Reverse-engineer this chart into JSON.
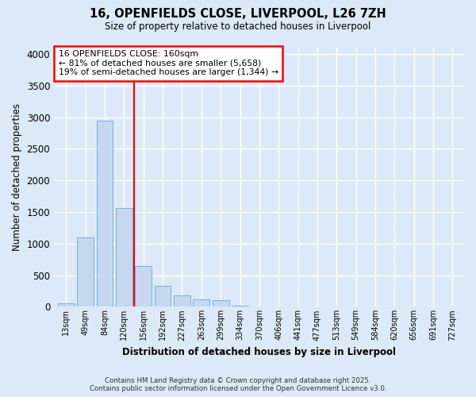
{
  "title_line1": "16, OPENFIELDS CLOSE, LIVERPOOL, L26 7ZH",
  "title_line2": "Size of property relative to detached houses in Liverpool",
  "xlabel": "Distribution of detached houses by size in Liverpool",
  "ylabel": "Number of detached properties",
  "categories": [
    "13sqm",
    "49sqm",
    "84sqm",
    "120sqm",
    "156sqm",
    "192sqm",
    "227sqm",
    "263sqm",
    "299sqm",
    "334sqm",
    "370sqm",
    "406sqm",
    "441sqm",
    "477sqm",
    "513sqm",
    "549sqm",
    "584sqm",
    "620sqm",
    "656sqm",
    "691sqm",
    "727sqm"
  ],
  "bar_heights": [
    50,
    1100,
    2950,
    1560,
    650,
    330,
    185,
    120,
    110,
    20,
    5,
    0,
    0,
    0,
    0,
    0,
    0,
    0,
    0,
    0,
    0
  ],
  "bar_color": "#c5d8f0",
  "bar_edgecolor": "#7aafd4",
  "annotation_box_text": "16 OPENFIELDS CLOSE: 160sqm\n← 81% of detached houses are smaller (5,658)\n19% of semi-detached houses are larger (1,344) →",
  "redline_x": 3.5,
  "background_color": "#dce9f8",
  "plot_bg_color": "#dce9f8",
  "grid_color": "#ffffff",
  "footer_line1": "Contains HM Land Registry data © Crown copyright and database right 2025.",
  "footer_line2": "Contains public sector information licensed under the Open Government Licence v3.0.",
  "ylim": [
    0,
    4100
  ],
  "yticks": [
    0,
    500,
    1000,
    1500,
    2000,
    2500,
    3000,
    3500,
    4000
  ]
}
